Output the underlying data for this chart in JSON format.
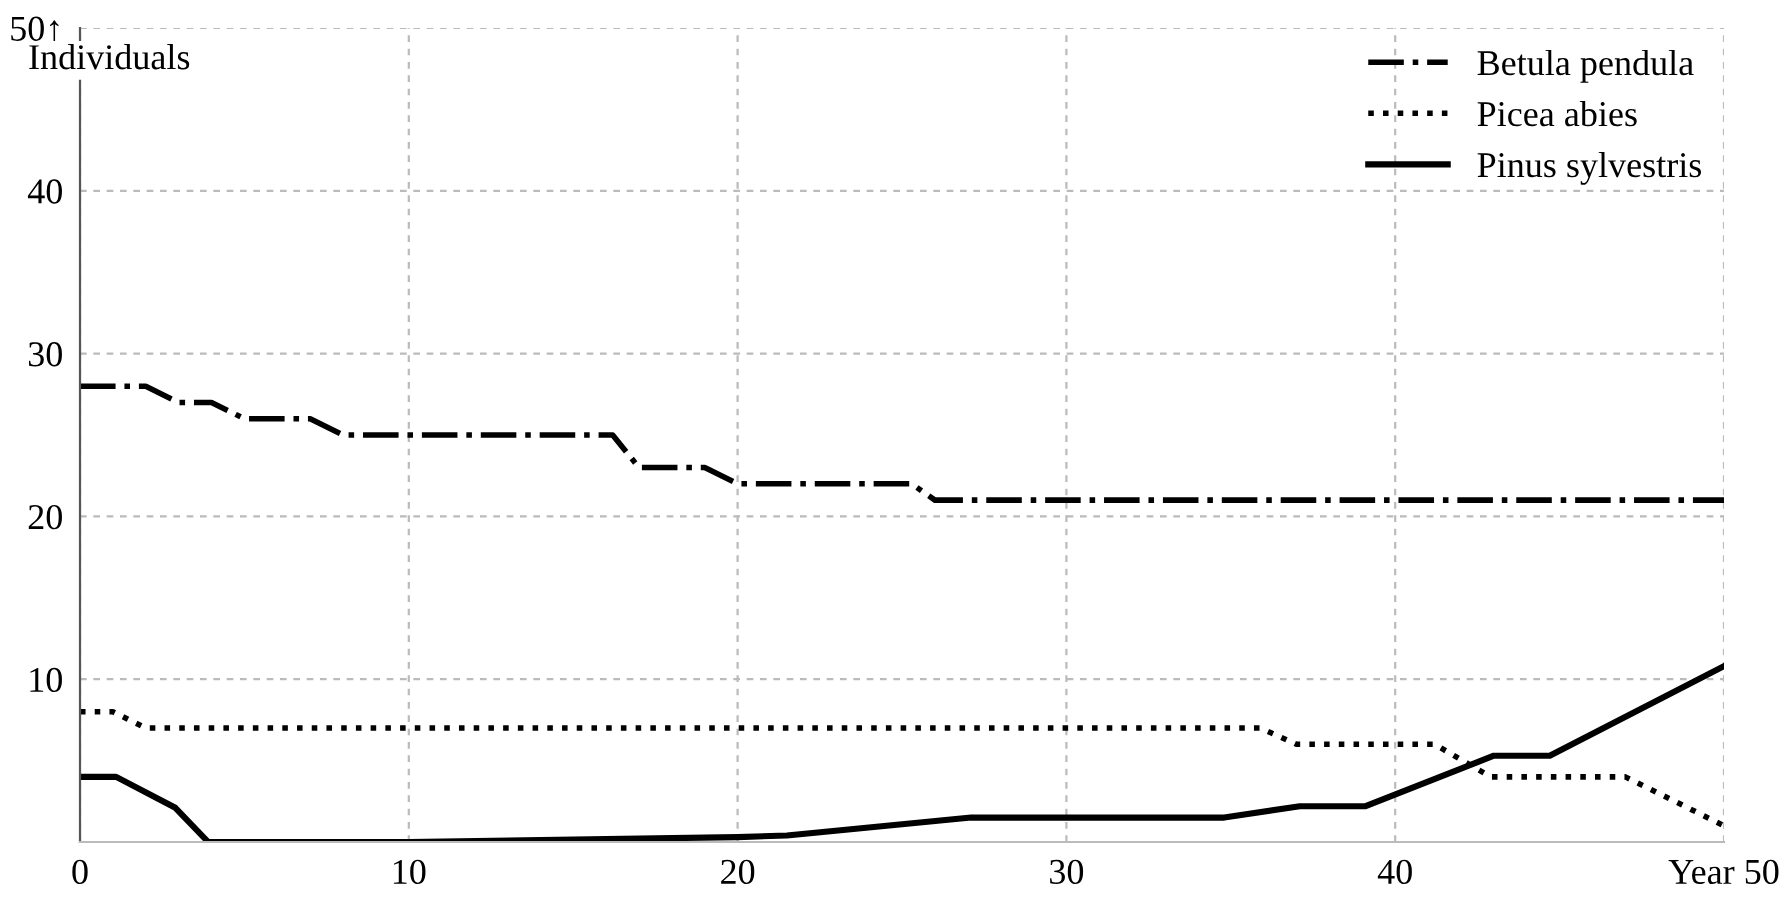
{
  "chart_data": {
    "type": "line",
    "ylabel": "Individuals",
    "xlim": [
      0,
      50
    ],
    "ylim": [
      0,
      50
    ],
    "xticks": [
      0,
      10,
      20,
      30,
      40,
      {
        "value": 50,
        "label": "Year 50"
      }
    ],
    "yticks": [
      {
        "value": 0,
        "label": null
      },
      10,
      20,
      30,
      40,
      {
        "value": 50,
        "label": "50↑"
      }
    ],
    "grid": true,
    "legend": "top right",
    "marker": "none",
    "series": [
      {
        "name": "Betula pendula",
        "color": "#000000",
        "line_style": "dashdot",
        "x": [
          0,
          2,
          3,
          4,
          5,
          7,
          8,
          16.2,
          17,
          19,
          20,
          25.3,
          26,
          50
        ],
        "values": [
          28,
          28,
          27,
          27,
          26,
          26,
          25,
          25,
          23,
          23,
          22,
          22,
          21,
          21
        ]
      },
      {
        "name": "Picea abies",
        "color": "#000000",
        "line_style": "dotted",
        "x": [
          0,
          1,
          2,
          35.9,
          37,
          41.2,
          42.9,
          47,
          50
        ],
        "values": [
          8,
          8,
          7,
          7,
          6,
          6,
          4,
          4,
          1
        ]
      },
      {
        "name": "Pinus sylvestris",
        "color": "#000000",
        "line_style": "solid",
        "x": [
          0,
          1.1,
          2.9,
          3.9,
          10,
          20,
          21.5,
          27.1,
          34.8,
          37.1,
          39.1,
          43,
          44.7,
          50
        ],
        "values": [
          4,
          4,
          2.1,
          0,
          0,
          0.3,
          0.4,
          1.5,
          1.5,
          2.2,
          2.2,
          5.3,
          5.3,
          10.8
        ]
      }
    ]
  }
}
